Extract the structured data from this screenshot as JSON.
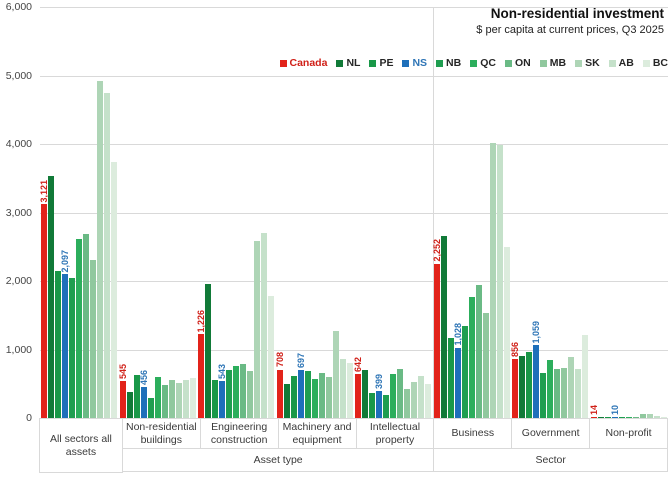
{
  "chart": {
    "title": "Non-residential investment",
    "subtitle": "$ per capita at current prices, Q3 2025"
  },
  "chart_data": {
    "type": "bar",
    "title": "Non-residential investment",
    "subtitle": "$ per capita at current prices, Q3 2025",
    "ylim": [
      0,
      6000
    ],
    "y_tick_step": 1000,
    "grid": "horizontal",
    "legend_position": "top-right",
    "series_names": [
      "Canada",
      "NL",
      "PE",
      "NS",
      "NB",
      "QC",
      "ON",
      "MB",
      "SK",
      "AB",
      "BC"
    ],
    "series_colors": [
      "#e2231a",
      "#117a38",
      "#199848",
      "#1e6fba",
      "#1f9e50",
      "#2cae5c",
      "#6aba85",
      "#90c89e",
      "#aed5b6",
      "#c5e1ca",
      "#dcecdd"
    ],
    "label_text_colors": {
      "Canada": "#d02018",
      "NS": "#2e75b6"
    },
    "labeled_series": [
      "Canada",
      "NS"
    ],
    "sections": [
      {
        "label": "",
        "group_count": 1
      },
      {
        "label": "Asset type",
        "group_count": 4
      },
      {
        "label": "Sector",
        "group_count": 3
      }
    ],
    "groups": [
      {
        "category": "All sectors all assets",
        "values": [
          3121,
          3540,
          2140,
          2097,
          2050,
          2610,
          2690,
          2310,
          4920,
          4750,
          3740
        ]
      },
      {
        "category": "Non-residential buildings",
        "values": [
          545,
          385,
          630,
          456,
          290,
          600,
          480,
          555,
          515,
          550,
          590
        ]
      },
      {
        "category": "Engineering construction",
        "values": [
          1226,
          1950,
          555,
          543,
          700,
          760,
          790,
          690,
          2580,
          2700,
          1780
        ]
      },
      {
        "category": "Machinery and equipment",
        "values": [
          708,
          490,
          610,
          697,
          690,
          565,
          650,
          605,
          1270,
          855,
          800
        ]
      },
      {
        "category": "Intellectual property",
        "values": [
          642,
          700,
          360,
          399,
          335,
          640,
          710,
          420,
          530,
          610,
          490
        ]
      },
      {
        "category": "Business",
        "values": [
          2252,
          2650,
          1165,
          1028,
          1340,
          1760,
          1940,
          1530,
          4020,
          3990,
          2490
        ]
      },
      {
        "category": "Government",
        "values": [
          856,
          900,
          970,
          1059,
          660,
          845,
          715,
          725,
          885,
          710,
          1210
        ]
      },
      {
        "category": "Non-profit",
        "values": [
          14,
          20,
          18,
          10,
          18,
          16,
          15,
          55,
          65,
          25,
          10
        ]
      }
    ]
  }
}
